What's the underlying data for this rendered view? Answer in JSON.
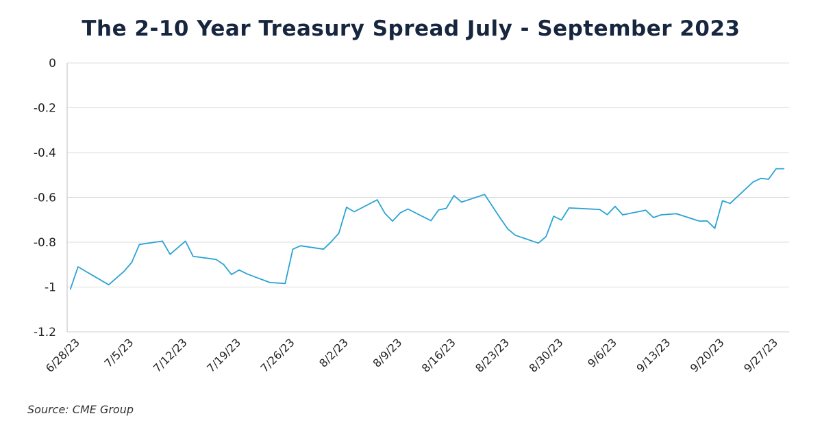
{
  "chart_data": {
    "type": "line",
    "title": "The 2-10 Year Treasury Spread July - September 2023",
    "source": "Source: CME Group",
    "xlabel": "",
    "ylabel": "",
    "ylim": [
      -1.2,
      0
    ],
    "yticks": [
      0,
      -0.2,
      -0.4,
      -0.6,
      -0.8,
      -1,
      -1.2
    ],
    "ytick_labels": [
      "0",
      "-0.2",
      "-0.4",
      "-0.6",
      "-0.8",
      "-1",
      "-1.2"
    ],
    "xtick_labels": [
      "6/28/23",
      "7/5/23",
      "7/12/23",
      "7/19/23",
      "7/26/23",
      "8/2/23",
      "8/9/23",
      "8/16/23",
      "8/23/23",
      "8/30/23",
      "9/6/23",
      "9/13/23",
      "9/20/23",
      "9/27/23"
    ],
    "grid": "horizontal",
    "line_color": "#2aa3d4",
    "series": [
      {
        "x": [
          "2023-06-28",
          "2023-06-29",
          "2023-07-03",
          "2023-07-05",
          "2023-07-06",
          "2023-07-07",
          "2023-07-10",
          "2023-07-11",
          "2023-07-13",
          "2023-07-14",
          "2023-07-17",
          "2023-07-18",
          "2023-07-19",
          "2023-07-20",
          "2023-07-21",
          "2023-07-24",
          "2023-07-26",
          "2023-07-27",
          "2023-07-28",
          "2023-07-31",
          "2023-08-01",
          "2023-08-02",
          "2023-08-03",
          "2023-08-04",
          "2023-08-07",
          "2023-08-08",
          "2023-08-09",
          "2023-08-10",
          "2023-08-11",
          "2023-08-14",
          "2023-08-15",
          "2023-08-16",
          "2023-08-17",
          "2023-08-18",
          "2023-08-21",
          "2023-08-23",
          "2023-08-24",
          "2023-08-25",
          "2023-08-28",
          "2023-08-29",
          "2023-08-30",
          "2023-08-31",
          "2023-09-01",
          "2023-09-05",
          "2023-09-06",
          "2023-09-07",
          "2023-09-08",
          "2023-09-11",
          "2023-09-12",
          "2023-09-13",
          "2023-09-15",
          "2023-09-18",
          "2023-09-19",
          "2023-09-20",
          "2023-09-21",
          "2023-09-22",
          "2023-09-25",
          "2023-09-26",
          "2023-09-27",
          "2023-09-28",
          "2023-09-29"
        ],
        "values": [
          -1.01,
          -0.91,
          -0.99,
          -0.93,
          -0.89,
          -0.81,
          -0.795,
          -0.854,
          -0.795,
          -0.863,
          -0.877,
          -0.9,
          -0.944,
          -0.924,
          -0.941,
          -0.98,
          -0.984,
          -0.831,
          -0.816,
          -0.831,
          -0.798,
          -0.76,
          -0.644,
          -0.664,
          -0.611,
          -0.671,
          -0.706,
          -0.669,
          -0.652,
          -0.704,
          -0.656,
          -0.649,
          -0.592,
          -0.621,
          -0.587,
          -0.691,
          -0.74,
          -0.769,
          -0.804,
          -0.775,
          -0.684,
          -0.701,
          -0.647,
          -0.654,
          -0.677,
          -0.64,
          -0.678,
          -0.657,
          -0.69,
          -0.678,
          -0.673,
          -0.706,
          -0.705,
          -0.738,
          -0.615,
          -0.627,
          -0.531,
          -0.515,
          -0.519,
          -0.472,
          -0.472
        ]
      }
    ]
  }
}
